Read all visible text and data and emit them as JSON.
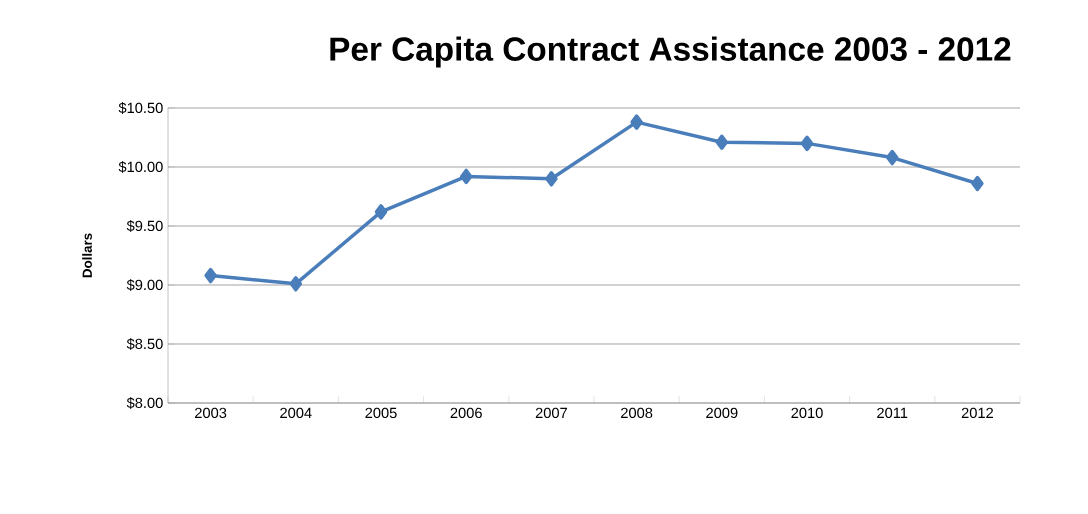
{
  "chart_data": {
    "type": "line",
    "title": "Per Capita Contract Assistance 2003 - 2012",
    "ylabel": "Dollars",
    "categories": [
      "2003",
      "2004",
      "2005",
      "2006",
      "2007",
      "2008",
      "2009",
      "2010",
      "2011",
      "2012"
    ],
    "series": [
      {
        "color": "#4a7ebb",
        "values": [
          9.08,
          9.01,
          9.62,
          9.92,
          9.9,
          10.38,
          10.21,
          10.2,
          10.08,
          9.86
        ]
      }
    ],
    "ylim": [
      8.0,
      10.5
    ],
    "yticks": [
      {
        "value": 8.0,
        "label": "$8.00"
      },
      {
        "value": 8.5,
        "label": "$8.50"
      },
      {
        "value": 9.0,
        "label": "$9.00"
      },
      {
        "value": 9.5,
        "label": "$9.50"
      },
      {
        "value": 10.0,
        "label": "$10.00"
      },
      {
        "value": 10.5,
        "label": "$10.50"
      }
    ],
    "grid": "y",
    "marker": "diamond",
    "line_style": "solid"
  }
}
